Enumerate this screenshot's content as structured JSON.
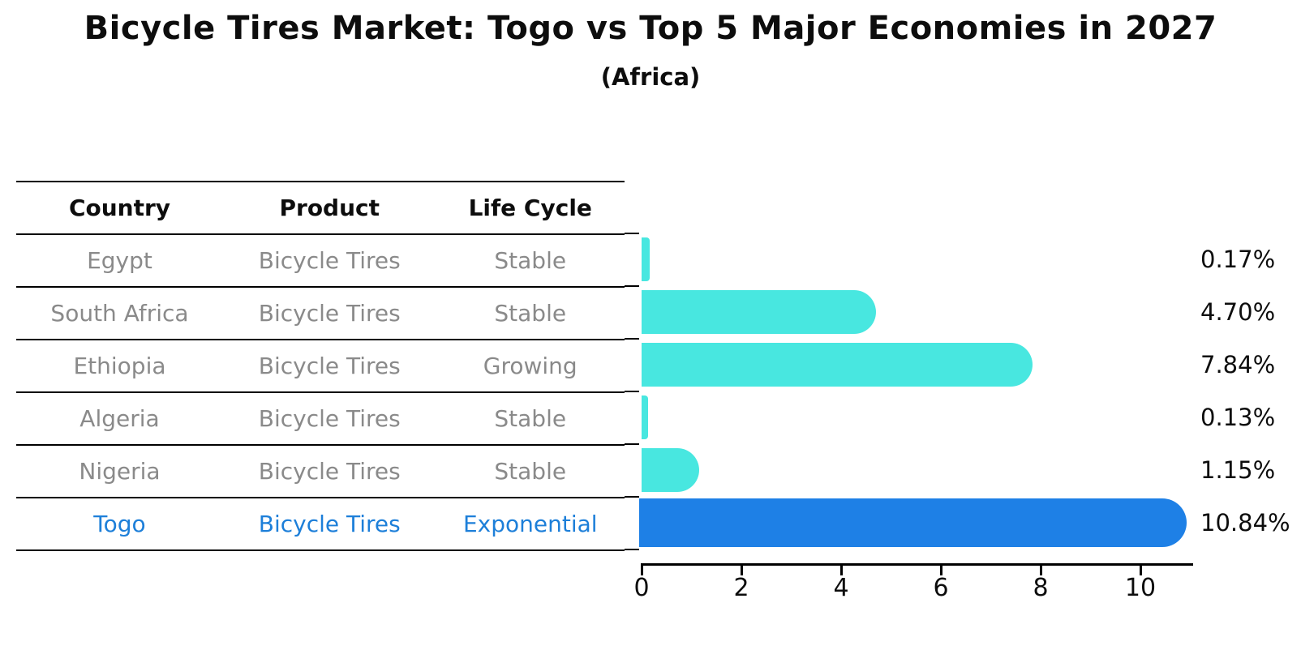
{
  "title": "Bicycle Tires Market: Togo vs Top 5 Major Economies in 2027",
  "subtitle": "(Africa)",
  "table": {
    "headers": [
      "Country",
      "Product",
      "Life Cycle"
    ],
    "rows": [
      {
        "country": "Egypt",
        "product": "Bicycle Tires",
        "life_cycle": "Stable",
        "highlight": false
      },
      {
        "country": "South Africa",
        "product": "Bicycle Tires",
        "life_cycle": "Stable",
        "highlight": false
      },
      {
        "country": "Ethiopia",
        "product": "Bicycle Tires",
        "life_cycle": "Growing",
        "highlight": false
      },
      {
        "country": "Algeria",
        "product": "Bicycle Tires",
        "life_cycle": "Stable",
        "highlight": false
      },
      {
        "country": "Nigeria",
        "product": "Bicycle Tires",
        "life_cycle": "Stable",
        "highlight": false
      },
      {
        "country": "Togo",
        "product": "Bicycle Tires",
        "life_cycle": "Exponential",
        "highlight": true
      }
    ]
  },
  "chart_data": {
    "type": "bar",
    "orientation": "horizontal",
    "title": "Bicycle Tires Market: Togo vs Top 5 Major Economies in 2027",
    "subtitle": "(Africa)",
    "categories": [
      "Egypt",
      "South Africa",
      "Ethiopia",
      "Algeria",
      "Nigeria",
      "Togo"
    ],
    "values": [
      0.17,
      4.7,
      7.84,
      0.13,
      1.15,
      10.84
    ],
    "value_labels": [
      "0.17%",
      "4.70%",
      "7.84%",
      "0.13%",
      "1.15%",
      "10.84%"
    ],
    "x_ticks": [
      0,
      2,
      4,
      6,
      8,
      10
    ],
    "xlim": [
      0,
      11.2
    ],
    "grid": false,
    "legend": "none",
    "bar_color": "#48e7e0",
    "highlight_color": "#1e80e6",
    "highlight_index": 5,
    "highlight_edge_style": "dotted",
    "highlight_text_color": "#1d7fd9"
  }
}
